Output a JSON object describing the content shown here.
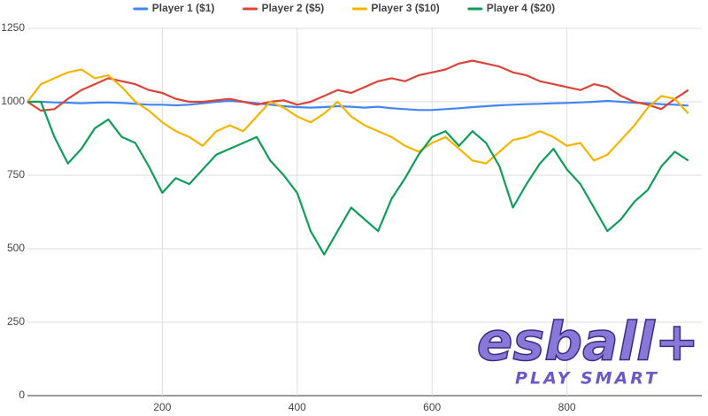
{
  "chart_data": {
    "type": "line",
    "x": [
      0,
      20,
      40,
      60,
      80,
      100,
      120,
      140,
      160,
      180,
      200,
      220,
      240,
      260,
      280,
      300,
      320,
      340,
      360,
      380,
      400,
      420,
      440,
      460,
      480,
      500,
      520,
      540,
      560,
      580,
      600,
      620,
      640,
      660,
      680,
      700,
      720,
      740,
      760,
      780,
      800,
      820,
      840,
      860,
      880,
      900,
      920,
      940,
      960,
      980
    ],
    "series": [
      {
        "name": "Player 1 ($1)",
        "color": "#4285f4",
        "values": [
          1000,
          1000,
          998,
          997,
          995,
          997,
          998,
          996,
          993,
          990,
          990,
          988,
          990,
          995,
          1000,
          1003,
          1000,
          995,
          990,
          985,
          982,
          980,
          982,
          985,
          983,
          980,
          983,
          978,
          975,
          972,
          972,
          975,
          978,
          982,
          985,
          988,
          990,
          992,
          993,
          995,
          996,
          998,
          1000,
          1003,
          1000,
          997,
          995,
          992,
          990,
          987
        ]
      },
      {
        "name": "Player 2 ($5)",
        "color": "#db4437",
        "values": [
          1000,
          970,
          975,
          1010,
          1040,
          1060,
          1080,
          1070,
          1060,
          1040,
          1030,
          1010,
          1000,
          1000,
          1005,
          1010,
          1000,
          990,
          1000,
          1005,
          990,
          1000,
          1020,
          1040,
          1030,
          1050,
          1070,
          1080,
          1070,
          1090,
          1100,
          1110,
          1130,
          1140,
          1130,
          1120,
          1100,
          1090,
          1070,
          1060,
          1050,
          1040,
          1060,
          1050,
          1020,
          1000,
          990,
          975,
          1010,
          1040
        ]
      },
      {
        "name": "Player 3 ($10)",
        "color": "#f4b400",
        "values": [
          1000,
          1060,
          1080,
          1100,
          1110,
          1080,
          1090,
          1050,
          1000,
          970,
          930,
          900,
          880,
          850,
          900,
          920,
          900,
          950,
          1000,
          980,
          950,
          930,
          960,
          1000,
          950,
          920,
          900,
          880,
          850,
          830,
          860,
          880,
          840,
          800,
          790,
          830,
          870,
          880,
          900,
          880,
          850,
          860,
          800,
          820,
          870,
          920,
          980,
          1020,
          1010,
          960
        ]
      },
      {
        "name": "Player 4 ($20)",
        "color": "#0f9d58",
        "values": [
          1000,
          1000,
          880,
          790,
          840,
          910,
          940,
          880,
          860,
          780,
          690,
          740,
          720,
          770,
          820,
          840,
          860,
          880,
          800,
          750,
          690,
          560,
          480,
          560,
          640,
          600,
          560,
          670,
          740,
          820,
          880,
          900,
          850,
          900,
          860,
          780,
          640,
          720,
          790,
          840,
          770,
          720,
          640,
          560,
          600,
          660,
          700,
          780,
          830,
          800
        ]
      }
    ],
    "xlim": [
      0,
      1000
    ],
    "xticks": [
      200,
      400,
      600,
      800
    ],
    "ylim": [
      0,
      1250
    ],
    "yticks": [
      0,
      250,
      500,
      750,
      1000,
      1250
    ],
    "grid": true,
    "legend": "top"
  },
  "watermark": {
    "brand": "esball+",
    "tagline": "PLAY SMART"
  }
}
